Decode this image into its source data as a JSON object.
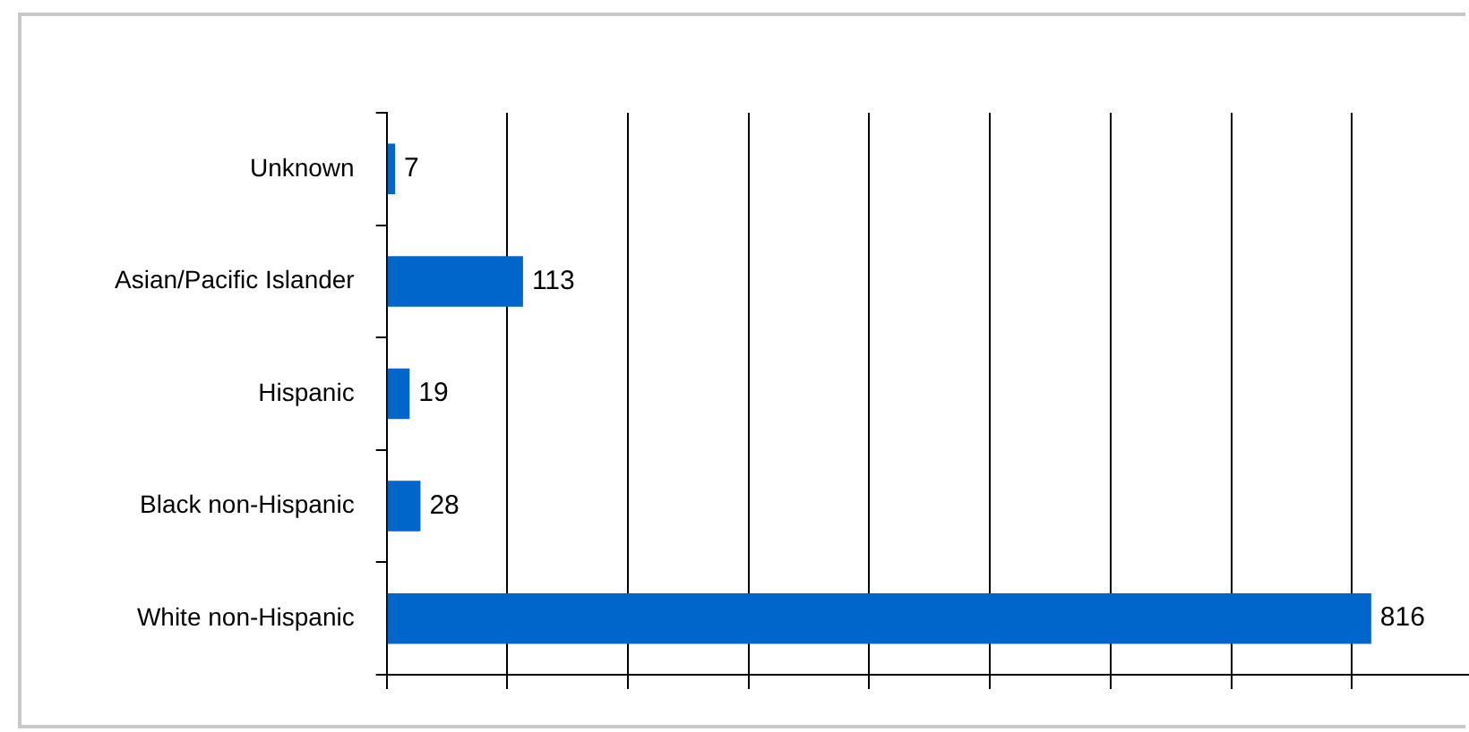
{
  "chart_data": {
    "type": "bar",
    "orientation": "horizontal",
    "categories": [
      "Unknown",
      "Asian/Pacific Islander",
      "Hispanic",
      "Black non-Hispanic",
      "White non-Hispanic"
    ],
    "values": [
      7,
      113,
      19,
      28,
      816
    ],
    "color": "#0066cc",
    "data_labels": true,
    "xlim": [
      0,
      900
    ],
    "xticks": [
      {
        "value": 0,
        "label": null
      },
      {
        "value": 100,
        "label": null
      },
      {
        "value": 200,
        "label": null
      },
      {
        "value": 300,
        "label": null
      },
      {
        "value": 400,
        "label": null
      },
      {
        "value": 500,
        "label": null
      },
      {
        "value": 600,
        "label": null
      },
      {
        "value": 700,
        "label": null
      },
      {
        "value": 800,
        "label": null
      },
      {
        "value": 900,
        "label": null
      }
    ],
    "tick_labels": "y",
    "grid": "x",
    "legend": false
  }
}
